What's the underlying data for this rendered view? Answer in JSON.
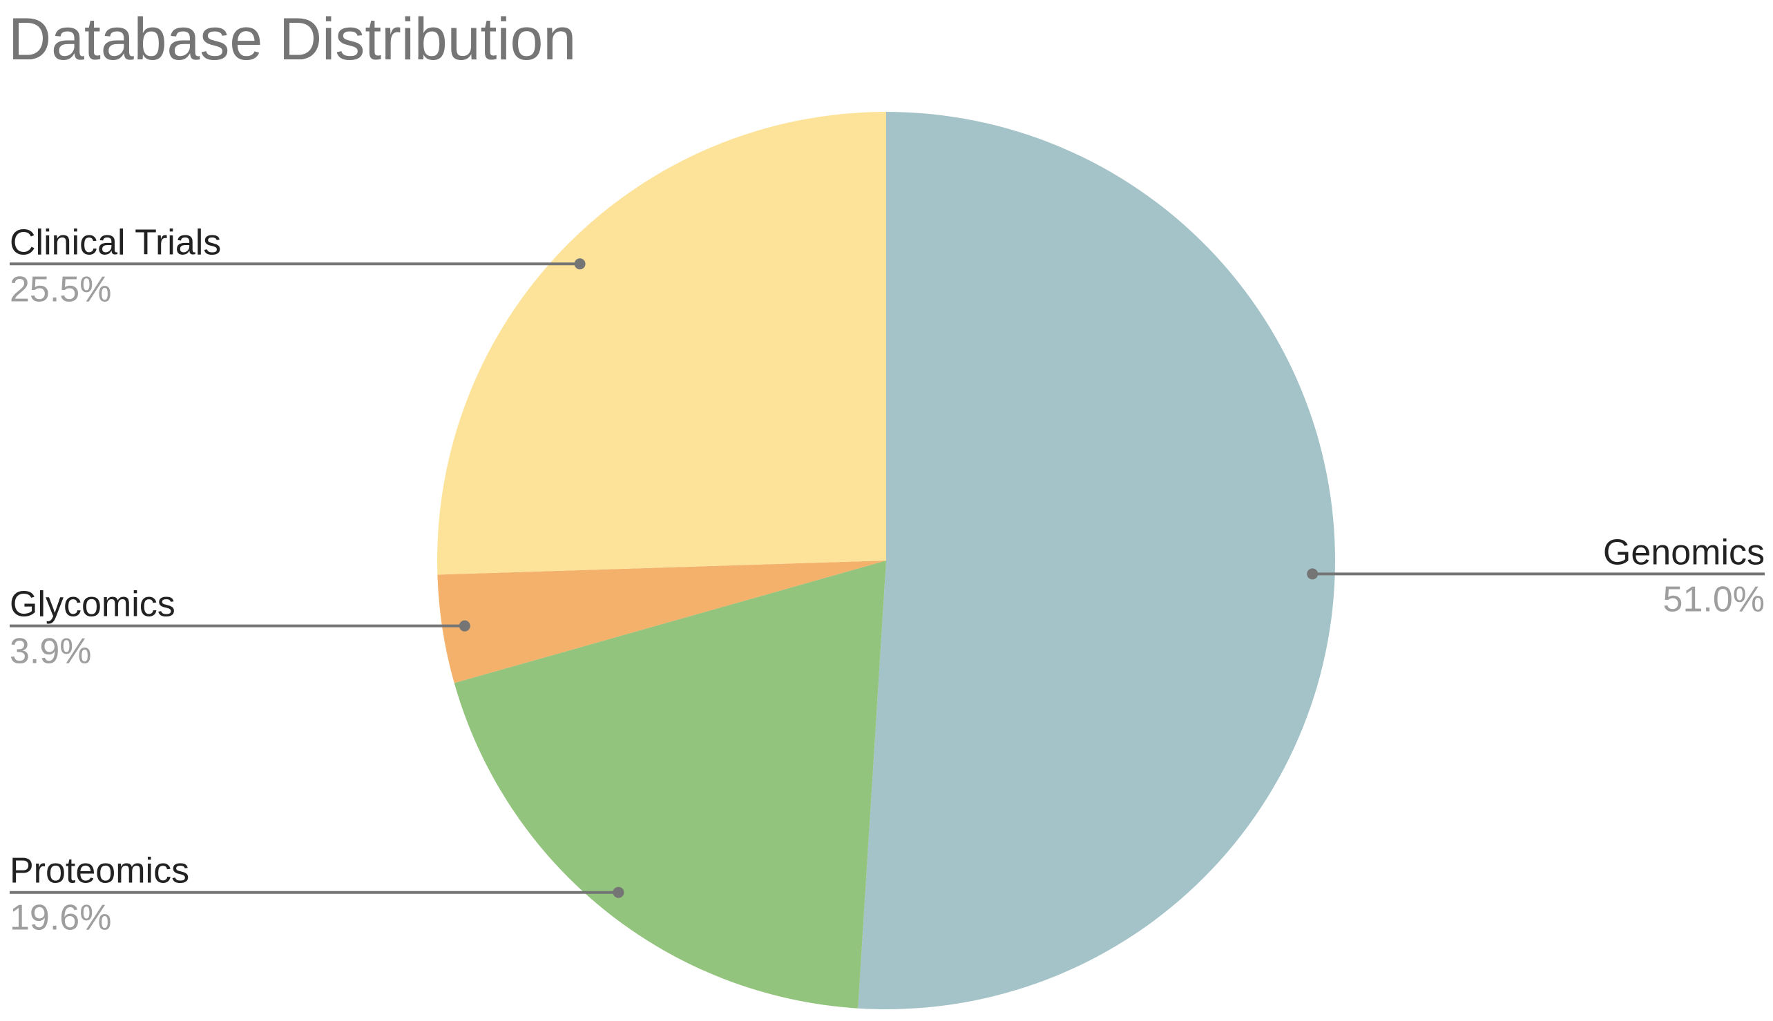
{
  "chart_data": {
    "type": "pie",
    "title": "Database Distribution",
    "start_angle_deg": 0,
    "direction": "clockwise",
    "slices": [
      {
        "label": "Genomics",
        "value": 51.0,
        "value_label": "51.0%",
        "color": "#a4c3c8",
        "label_side": "right"
      },
      {
        "label": "Proteomics",
        "value": 19.6,
        "value_label": "19.6%",
        "color": "#93c47d",
        "label_side": "left"
      },
      {
        "label": "Glycomics",
        "value": 3.9,
        "value_label": "3.9%",
        "color": "#f4b16b",
        "label_side": "left"
      },
      {
        "label": "Clinical Trials",
        "value": 25.5,
        "value_label": "25.5%",
        "color": "#fde39a",
        "label_side": "left"
      }
    ],
    "legend": "none",
    "leader_line_color": "#757575"
  }
}
